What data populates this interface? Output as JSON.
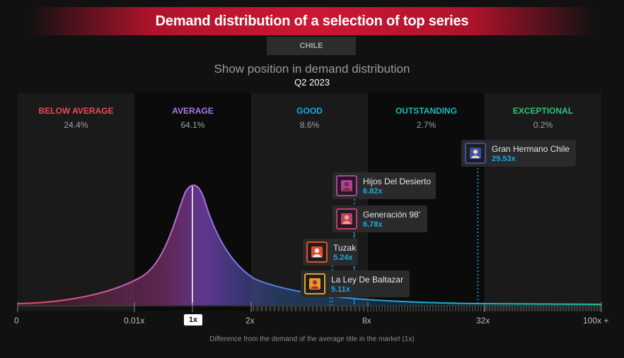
{
  "header": {
    "title": "Demand distribution of a selection of top series",
    "country": "CHILE",
    "subtitle": "Show position in demand distribution",
    "quarter": "Q2 2023"
  },
  "colors": {
    "below_average": "#e84b5b",
    "average": "#a978e8",
    "good": "#1fa7e0",
    "outstanding": "#1fb8b8",
    "exceptional": "#2fc27a",
    "multiplier_text": "#1fa7e0"
  },
  "chart_data": {
    "type": "area",
    "title": "Show position in demand distribution",
    "xlabel": "Difference from the demand of the average title in the market (1x)",
    "x_ticks": [
      "0",
      "0.01x",
      "1x",
      "2x",
      "8x",
      "32x",
      "100x +"
    ],
    "average_marker": "1x",
    "bands": [
      {
        "key": "below_average",
        "label": "BELOW AVERAGE",
        "share": "24.4%"
      },
      {
        "key": "average",
        "label": "AVERAGE",
        "share": "64.1%"
      },
      {
        "key": "good",
        "label": "GOOD",
        "share": "8.6%"
      },
      {
        "key": "outstanding",
        "label": "OUTSTANDING",
        "share": "2.7%"
      },
      {
        "key": "exceptional",
        "label": "EXCEPTIONAL",
        "share": "0.2%"
      }
    ],
    "shows": [
      {
        "name": "Gran Hermano Chile",
        "multiplier": 29.53,
        "label": "29.53x",
        "thumb_icon": "portrait-icon"
      },
      {
        "name": "Hijos Del Desierto",
        "multiplier": 6.82,
        "label": "6.82x",
        "thumb_icon": "figure-icon"
      },
      {
        "name": "Generación 98'",
        "multiplier": 6.78,
        "label": "6.78x",
        "thumb_icon": "group-icon"
      },
      {
        "name": "Tuzak",
        "multiplier": 5.24,
        "label": "5.24x",
        "thumb_icon": "figure-icon"
      },
      {
        "name": "La Ley De Baltazar",
        "multiplier": 5.11,
        "label": "5.11x",
        "thumb_icon": "group-icon"
      }
    ]
  }
}
